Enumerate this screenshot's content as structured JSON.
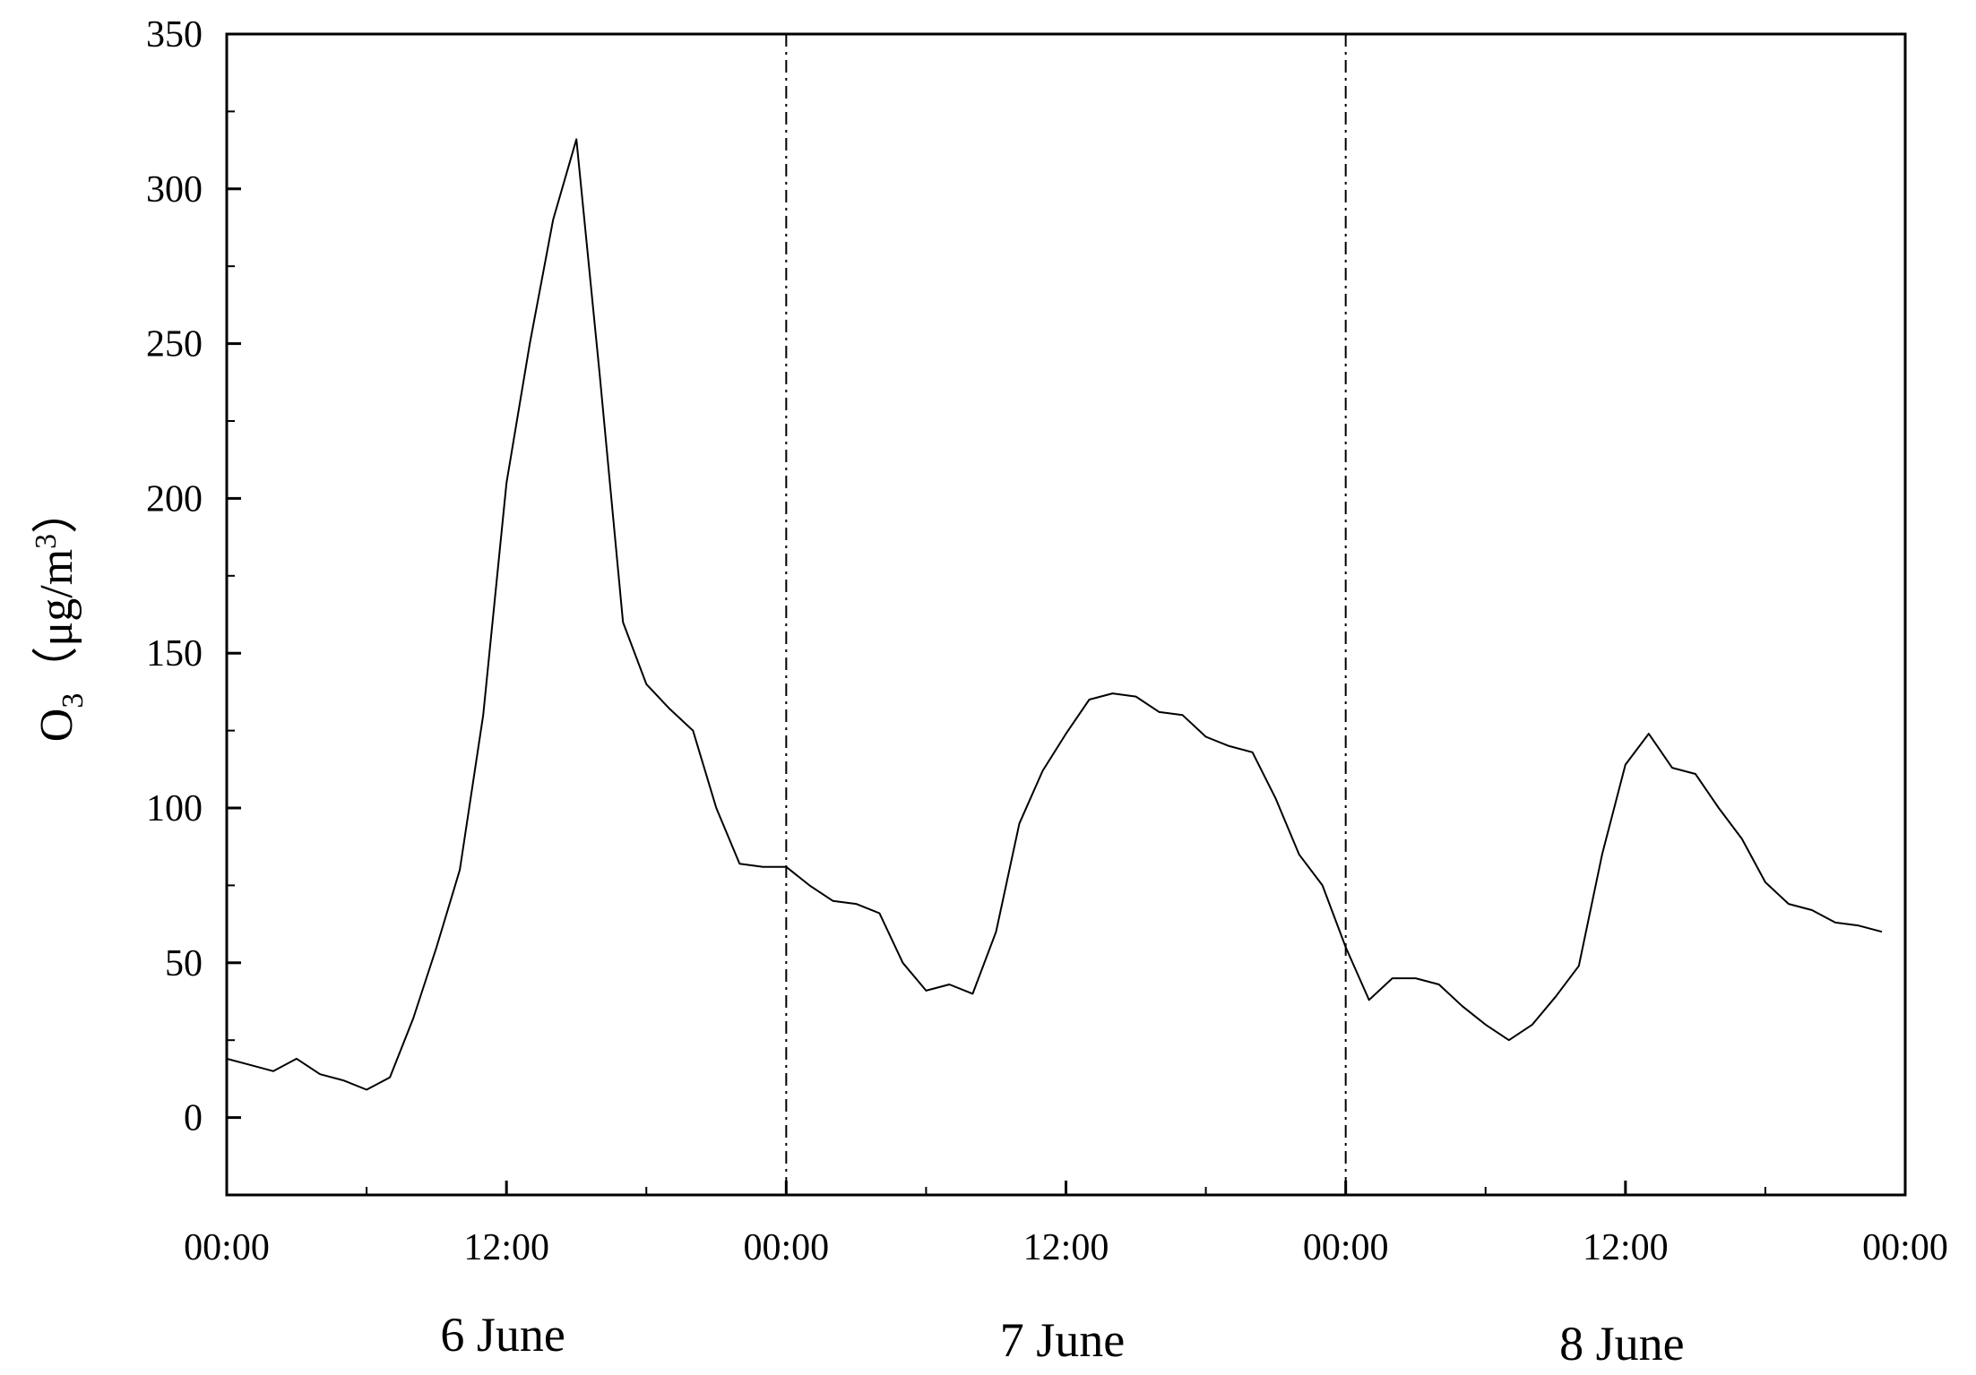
{
  "chart_data": {
    "type": "line",
    "xlabel": "",
    "ylabel": {
      "species": "O",
      "subscript": "3",
      "open": "（",
      "unit": "μg/m",
      "superscript": "3",
      "close": "）"
    },
    "xlim": [
      0,
      72
    ],
    "ylim": [
      -25,
      350
    ],
    "yticks": [
      {
        "value": 0,
        "label": "0"
      },
      {
        "value": 50,
        "label": "50"
      },
      {
        "value": 100,
        "label": "100"
      },
      {
        "value": 150,
        "label": "150"
      },
      {
        "value": 200,
        "label": "200"
      },
      {
        "value": 250,
        "label": "250"
      },
      {
        "value": 300,
        "label": "300"
      },
      {
        "value": 350,
        "label": "350"
      }
    ],
    "xticks": [
      {
        "value": 0,
        "label": "00:00"
      },
      {
        "value": 12,
        "label": "12:00"
      },
      {
        "value": 24,
        "label": "00:00"
      },
      {
        "value": 36,
        "label": "12:00"
      },
      {
        "value": 48,
        "label": "00:00"
      },
      {
        "value": 60,
        "label": "12:00"
      },
      {
        "value": 72,
        "label": "00:00"
      }
    ],
    "day_labels": [
      {
        "center_hour": 12,
        "label": "6 June"
      },
      {
        "center_hour": 36,
        "label": "7 June"
      },
      {
        "center_hour": 60,
        "label": "8 June"
      }
    ],
    "day_dividers": [
      24,
      48
    ],
    "grid": false,
    "line_color": "#000000",
    "series": [
      {
        "x": [
          0,
          1,
          2,
          3,
          4,
          5,
          6,
          7,
          8,
          9,
          10,
          11,
          12,
          13,
          14,
          15,
          16,
          17,
          18,
          19,
          20,
          21,
          22,
          23,
          24,
          25,
          26,
          27,
          28,
          29,
          30,
          31,
          32,
          33,
          34,
          35,
          36,
          37,
          38,
          39,
          40,
          41,
          42,
          43,
          44,
          45,
          46,
          47,
          48,
          49,
          50,
          51,
          52,
          53,
          54,
          55,
          56,
          57,
          58,
          59,
          60,
          61,
          62,
          63,
          64,
          65,
          66,
          67,
          68,
          69,
          70,
          71
        ],
        "values": [
          19,
          17,
          15,
          19,
          14,
          12,
          9,
          13,
          32,
          55,
          80,
          130,
          205,
          250,
          290,
          316,
          240,
          160,
          140,
          132,
          125,
          100,
          82,
          81,
          81,
          75,
          70,
          69,
          66,
          50,
          41,
          43,
          40,
          60,
          95,
          112,
          124,
          135,
          137,
          136,
          131,
          130,
          123,
          120,
          118,
          103,
          85,
          75,
          55,
          38,
          45,
          45,
          43,
          36,
          30,
          25,
          30,
          39,
          49,
          85,
          114,
          124,
          113,
          111,
          100,
          90,
          76,
          69,
          67,
          63,
          62,
          60
        ]
      }
    ]
  }
}
